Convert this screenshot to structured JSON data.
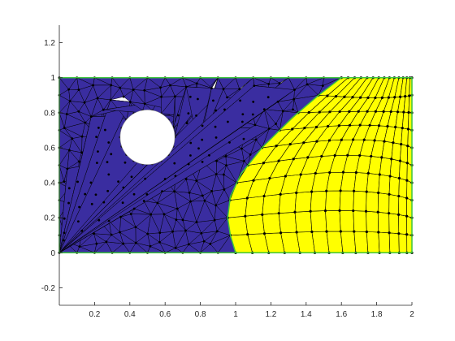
{
  "chart_data": {
    "type": "mesh-plot",
    "xlim": [
      0,
      2
    ],
    "ylim": [
      -0.3,
      1.3
    ],
    "x_ticks": [
      {
        "v": 0.2,
        "label": "0.2"
      },
      {
        "v": 0.4,
        "label": "0.4"
      },
      {
        "v": 0.6,
        "label": "0.6"
      },
      {
        "v": 0.8,
        "label": "0.8"
      },
      {
        "v": 1.0,
        "label": "1"
      },
      {
        "v": 1.2,
        "label": "1.2"
      },
      {
        "v": 1.4,
        "label": "1.4"
      },
      {
        "v": 1.6,
        "label": "1.6"
      },
      {
        "v": 1.8,
        "label": "1.8"
      },
      {
        "v": 2.0,
        "label": "2"
      }
    ],
    "y_ticks": [
      {
        "v": -0.2,
        "label": "-0.2"
      },
      {
        "v": 0,
        "label": "0"
      },
      {
        "v": 0.2,
        "label": "0.2"
      },
      {
        "v": 0.4,
        "label": "0.4"
      },
      {
        "v": 0.6,
        "label": "0.6"
      },
      {
        "v": 0.8,
        "label": "0.8"
      },
      {
        "v": 1.0,
        "label": "1"
      },
      {
        "v": 1.2,
        "label": "1.2"
      }
    ],
    "domain_rectangle": {
      "x": [
        0,
        2
      ],
      "y": [
        0,
        1
      ]
    },
    "hole": {
      "cx": 0.5,
      "cy": 0.66,
      "r": 0.155
    },
    "interface_curve": [
      [
        1.0,
        0
      ],
      [
        0.97,
        0.1
      ],
      [
        0.955,
        0.2
      ],
      [
        0.97,
        0.32
      ],
      [
        1.03,
        0.45
      ],
      [
        1.15,
        0.6
      ],
      [
        1.32,
        0.77
      ],
      [
        1.47,
        0.9
      ],
      [
        1.6,
        1.0
      ]
    ],
    "regions": [
      {
        "name": "triangular-mesh",
        "color": "#3a2da0"
      },
      {
        "name": "quadrilateral-mesh",
        "color": "#ffff00"
      }
    ],
    "boundary_color": "#3cc43c",
    "edge_color": "#000000",
    "node_color": "#000000",
    "tri_seed": 7,
    "quad_cols": 14,
    "quad_rows": 10
  }
}
